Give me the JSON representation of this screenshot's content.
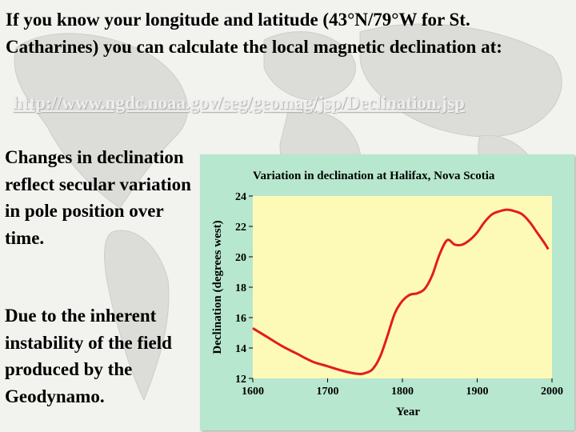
{
  "slide": {
    "heading": "If you know your longitude and latitude (43°N/79°W for St. Catharines) you can calculate the local magnetic declination at:",
    "link": "http://www.ngdc.noaa.gov/seg/geomag/jsp/Declination.jsp",
    "para1": "Changes in declination reflect secular variation in pole position over time.",
    "para2": "Due to the inherent instability of the field produced by the Geodynamo."
  },
  "colors": {
    "panel_bg": "#b7e7cf",
    "plot_bg": "#fdfab7",
    "curve": "#e31c1c",
    "text": "#000000"
  },
  "chart_data": {
    "type": "line",
    "title": "Variation in declination at Halifax, Nova Scotia",
    "xlabel": "Year",
    "ylabel": "Declination (degrees west)",
    "xlim": [
      1600,
      2000
    ],
    "ylim": [
      12,
      24
    ],
    "xticks": [
      1600,
      1700,
      1800,
      1900,
      2000
    ],
    "yticks": [
      12,
      14,
      16,
      18,
      20,
      22,
      24
    ],
    "grid": false,
    "series": [
      {
        "x": [
          1600,
          1620,
          1640,
          1660,
          1680,
          1700,
          1720,
          1740,
          1750,
          1760,
          1770,
          1780,
          1790,
          1800,
          1810,
          1820,
          1830,
          1840,
          1850,
          1860,
          1870,
          1880,
          1890,
          1900,
          1910,
          1920,
          1930,
          1940,
          1950,
          1960,
          1970,
          1980,
          1990,
          1995
        ],
        "y": [
          15.3,
          14.7,
          14.1,
          13.6,
          13.1,
          12.8,
          12.5,
          12.3,
          12.35,
          12.6,
          13.4,
          14.8,
          16.3,
          17.1,
          17.5,
          17.6,
          17.9,
          18.8,
          20.2,
          21.1,
          20.8,
          20.8,
          21.1,
          21.6,
          22.3,
          22.8,
          23.0,
          23.1,
          23.0,
          22.8,
          22.3,
          21.6,
          20.9,
          20.5
        ]
      }
    ]
  }
}
